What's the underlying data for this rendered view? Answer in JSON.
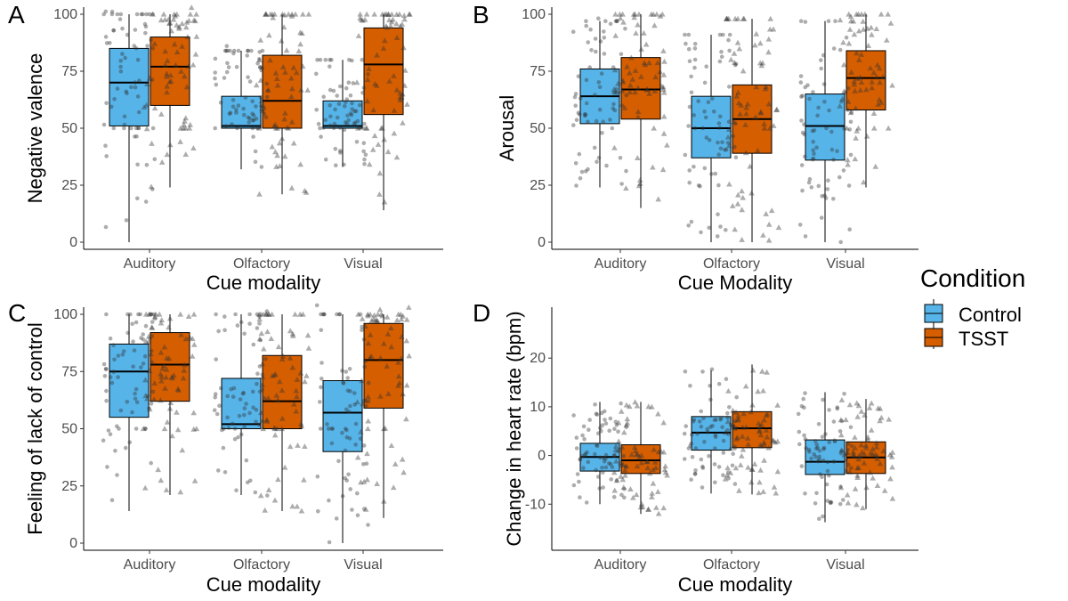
{
  "legend": {
    "title": "Condition",
    "entries": [
      {
        "name": "Control",
        "color": "#56B4E9"
      },
      {
        "name": "TSST",
        "color": "#D55E00"
      }
    ]
  },
  "chart_data": [
    {
      "type": "box",
      "panel": "A",
      "xlabel": "Cue modality",
      "ylabel": "Negative valence",
      "categories": [
        "Auditory",
        "Olfactory",
        "Visual"
      ],
      "ylim": [
        0,
        100
      ],
      "yticks": [
        0,
        25,
        50,
        75,
        100
      ],
      "series": [
        {
          "name": "Control",
          "boxes": [
            {
              "min": 0,
              "q1": 51,
              "median": 70,
              "q3": 85,
              "max": 100
            },
            {
              "min": 32,
              "q1": 50,
              "median": 51,
              "q3": 64,
              "max": 84
            },
            {
              "min": 33,
              "q1": 50,
              "median": 51,
              "q3": 62,
              "max": 80
            }
          ]
        },
        {
          "name": "TSST",
          "boxes": [
            {
              "min": 24,
              "q1": 60,
              "median": 77,
              "q3": 90,
              "max": 100
            },
            {
              "min": 21,
              "q1": 50,
              "median": 62,
              "q3": 82,
              "max": 100
            },
            {
              "min": 14,
              "q1": 56,
              "median": 78,
              "q3": 94,
              "max": 100
            }
          ]
        }
      ]
    },
    {
      "type": "box",
      "panel": "B",
      "xlabel": "Cue Modality",
      "ylabel": "Arousal",
      "categories": [
        "Auditory",
        "Olfactory",
        "Visual"
      ],
      "ylim": [
        0,
        100
      ],
      "yticks": [
        0,
        25,
        50,
        75,
        100
      ],
      "series": [
        {
          "name": "Control",
          "boxes": [
            {
              "min": 24,
              "q1": 52,
              "median": 64,
              "q3": 76,
              "max": 97
            },
            {
              "min": 0,
              "q1": 37,
              "median": 50,
              "q3": 64,
              "max": 91
            },
            {
              "min": 0,
              "q1": 36,
              "median": 51,
              "q3": 65,
              "max": 97
            }
          ]
        },
        {
          "name": "TSST",
          "boxes": [
            {
              "min": 15,
              "q1": 54,
              "median": 67,
              "q3": 81,
              "max": 100
            },
            {
              "min": 0,
              "q1": 39,
              "median": 54,
              "q3": 69,
              "max": 98
            },
            {
              "min": 24,
              "q1": 58,
              "median": 72,
              "q3": 84,
              "max": 100
            }
          ]
        }
      ]
    },
    {
      "type": "box",
      "panel": "C",
      "xlabel": "Cue modality",
      "ylabel": "Feeling of lack of control",
      "categories": [
        "Auditory",
        "Olfactory",
        "Visual"
      ],
      "ylim": [
        0,
        100
      ],
      "yticks": [
        0,
        25,
        50,
        75,
        100
      ],
      "series": [
        {
          "name": "Control",
          "boxes": [
            {
              "min": 14,
              "q1": 55,
              "median": 75,
              "q3": 87,
              "max": 100
            },
            {
              "min": 21,
              "q1": 50,
              "median": 52,
              "q3": 72,
              "max": 100
            },
            {
              "min": 0,
              "q1": 40,
              "median": 57,
              "q3": 71,
              "max": 100
            }
          ]
        },
        {
          "name": "TSST",
          "boxes": [
            {
              "min": 21,
              "q1": 62,
              "median": 78,
              "q3": 92,
              "max": 100
            },
            {
              "min": 14,
              "q1": 50,
              "median": 62,
              "q3": 82,
              "max": 100
            },
            {
              "min": 11,
              "q1": 59,
              "median": 80,
              "q3": 96,
              "max": 100
            }
          ]
        }
      ]
    },
    {
      "type": "box",
      "panel": "D",
      "xlabel": "Cue modality",
      "ylabel": "Change in heart rate (bpm)",
      "categories": [
        "Auditory",
        "Olfactory",
        "Visual"
      ],
      "ylim": [
        -18,
        29
      ],
      "yticks": [
        -10,
        0,
        10,
        20
      ],
      "series": [
        {
          "name": "Control",
          "boxes": [
            {
              "min": -10,
              "q1": -3.2,
              "median": -0.3,
              "q3": 2.5,
              "max": 11
            },
            {
              "min": -7.8,
              "q1": 1.1,
              "median": 4.7,
              "q3": 8,
              "max": 17.5
            },
            {
              "min": -13.7,
              "q1": -3.9,
              "median": -1.3,
              "q3": 3.2,
              "max": 13
            }
          ]
        },
        {
          "name": "TSST",
          "boxes": [
            {
              "min": -12,
              "q1": -3.7,
              "median": -1,
              "q3": 2.2,
              "max": 11
            },
            {
              "min": -8,
              "q1": 1.6,
              "median": 5.6,
              "q3": 9,
              "max": 18.7
            },
            {
              "min": -11,
              "q1": -3.7,
              "median": -0.4,
              "q3": 2.8,
              "max": 11.6
            }
          ]
        }
      ]
    }
  ]
}
